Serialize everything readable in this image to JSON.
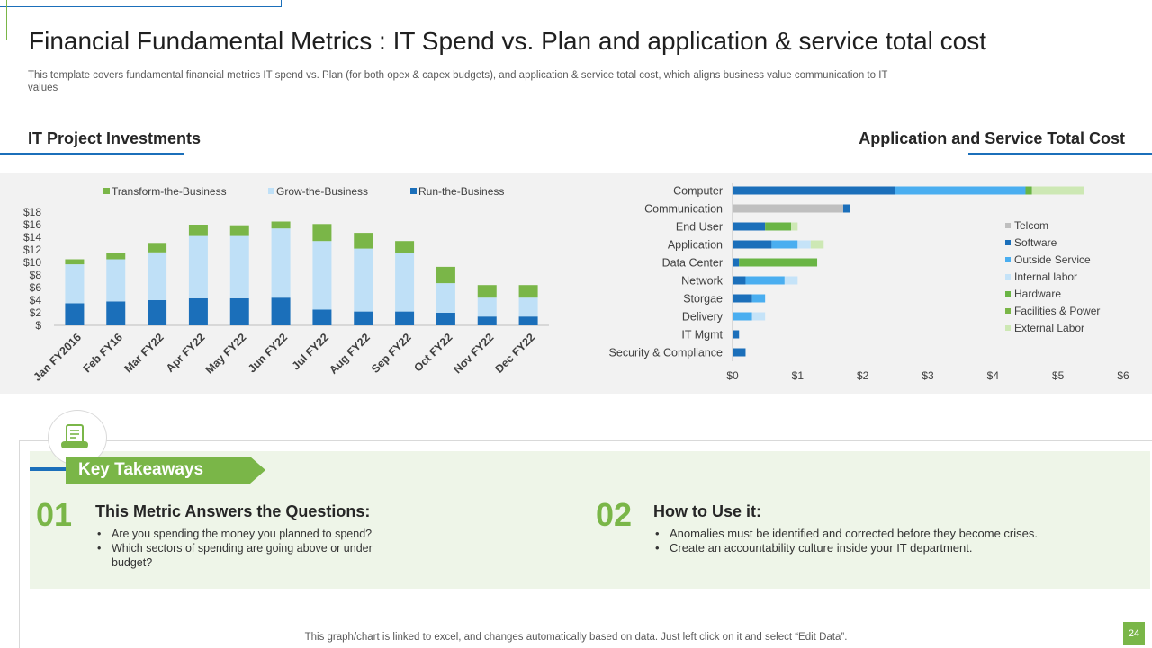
{
  "header": {
    "title": "Financial Fundamental Metrics : IT Spend vs. Plan and application & service total cost",
    "subtitle": "This template covers fundamental financial metrics IT spend vs. Plan (for both opex & capex budgets), and application & service total cost, which aligns business value communication to IT values"
  },
  "sections": {
    "left_title": "IT Project Investments",
    "right_title": "Application and Service Total Cost"
  },
  "colors": {
    "transform": "#7ab648",
    "grow": "#bfe0f7",
    "run": "#1b6fba",
    "telcom": "#bfbfbf",
    "software": "#1b6fba",
    "outside": "#4aaef0",
    "internal": "#c5e3f8",
    "hardware": "#6ab545",
    "facilities": "#7ab648",
    "external": "#cde8b4",
    "accent_blue": "#1b6fba",
    "accent_green": "#7ab648"
  },
  "chart_data": [
    {
      "type": "bar",
      "stacked": true,
      "title": "IT Project Investments",
      "categories": [
        "Jan FY2016",
        "Feb FY16",
        "Mar FY22",
        "Apr FY22",
        "May FY22",
        "Jun FY22",
        "Jul FY22",
        "Aug FY22",
        "Sep FY22",
        "Oct FY22",
        "Nov FY22",
        "Dec FY22"
      ],
      "series": [
        {
          "name": "Run-the-Business",
          "values": [
            3.5,
            3.8,
            4.0,
            4.3,
            4.3,
            4.4,
            2.5,
            2.2,
            2.2,
            2.0,
            1.4,
            1.4
          ]
        },
        {
          "name": "Grow-the-Business",
          "values": [
            6.2,
            6.7,
            7.6,
            9.9,
            9.9,
            11.0,
            10.9,
            10.0,
            9.3,
            4.7,
            3.0,
            3.0
          ]
        },
        {
          "name": "Transform-the-Business",
          "values": [
            0.8,
            1.0,
            1.5,
            1.8,
            1.7,
            1.1,
            2.7,
            2.5,
            1.9,
            2.6,
            2.0,
            2.0
          ]
        }
      ],
      "legend": [
        "Transform-the-Business",
        "Grow-the-Business",
        "Run-the-Business"
      ],
      "y_ticks": [
        "$",
        "$2",
        "$4",
        "$6",
        "$8",
        "$10",
        "$12",
        "$14",
        "$16",
        "$18"
      ],
      "ylim": [
        0,
        18
      ],
      "legend_position": "top"
    },
    {
      "type": "bar",
      "orientation": "horizontal",
      "stacked": true,
      "title": "Application and Service Total Cost",
      "categories": [
        "Computer",
        "Communication",
        "End User",
        "Application",
        "Data Center",
        "Network",
        "Storgae",
        "Delivery",
        "IT Mgmt",
        "Security & Compliance"
      ],
      "series": [
        {
          "name": "Telcom",
          "values": [
            0,
            1.7,
            0,
            0,
            0,
            0,
            0,
            0,
            0,
            0
          ]
        },
        {
          "name": "Software",
          "values": [
            2.5,
            0.1,
            0.5,
            0.6,
            0.1,
            0.2,
            0.3,
            0,
            0.1,
            0.2
          ]
        },
        {
          "name": "Outside Service",
          "values": [
            2.0,
            0,
            0,
            0.4,
            0,
            0.6,
            0.2,
            0.3,
            0,
            0
          ]
        },
        {
          "name": "Internal labor",
          "values": [
            0,
            0,
            0,
            0.2,
            0,
            0.2,
            0,
            0.2,
            0,
            0
          ]
        },
        {
          "name": "Hardware",
          "values": [
            0.1,
            0,
            0.4,
            0,
            1.2,
            0,
            0,
            0,
            0,
            0
          ]
        },
        {
          "name": "Facilities & Power",
          "values": [
            0,
            0,
            0,
            0,
            0,
            0,
            0,
            0,
            0,
            0
          ]
        },
        {
          "name": "External Labor",
          "values": [
            0.8,
            0,
            0.1,
            0.2,
            0,
            0,
            0,
            0,
            0,
            0
          ]
        }
      ],
      "x_ticks": [
        "$0",
        "$1",
        "$2",
        "$3",
        "$4",
        "$5",
        "$6"
      ],
      "xlim": [
        0,
        6
      ],
      "legend_position": "right"
    }
  ],
  "takeaways": {
    "label": "Key Takeaways",
    "items": [
      {
        "number": "01",
        "title": "This Metric Answers the Questions:",
        "bullets": [
          "Are you spending the money you planned to spend?",
          "Which sectors of spending are going above  or under  budget?"
        ]
      },
      {
        "number": "02",
        "title": "How to Use it:",
        "bullets": [
          "Anomalies must be identified and corrected before they become crises.",
          "Create an accountability culture inside your IT department."
        ]
      }
    ]
  },
  "footer": {
    "note": "This graph/chart is linked to excel,  and changes automatically based on data. Just left click on it and select “Edit Data”.",
    "page_number": "24"
  }
}
